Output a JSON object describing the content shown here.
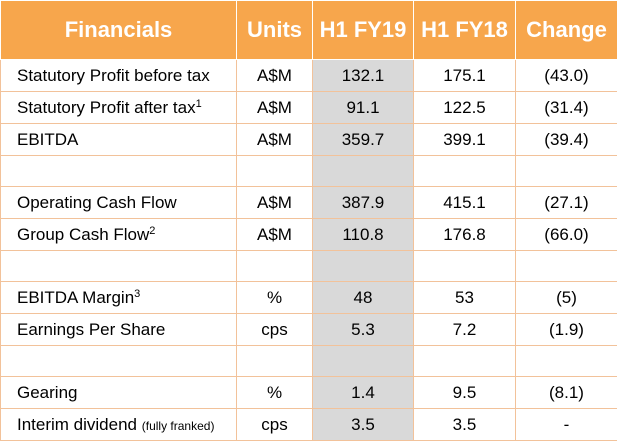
{
  "headers": [
    "Financials",
    "Units",
    "H1 FY19",
    "H1 FY18",
    "Change"
  ],
  "rows": [
    {
      "label": "Statutory Profit before tax",
      "sup": "",
      "note": "",
      "units": "A$M",
      "fy19": "132.1",
      "fy18": "175.1",
      "change": "(43.0)"
    },
    {
      "label": "Statutory Profit after tax",
      "sup": "1",
      "note": "",
      "units": "A$M",
      "fy19": "91.1",
      "fy18": "122.5",
      "change": "(31.4)"
    },
    {
      "label": "EBITDA",
      "sup": "",
      "note": "",
      "units": "A$M",
      "fy19": "359.7",
      "fy18": "399.1",
      "change": "(39.4)"
    },
    {
      "blank": true
    },
    {
      "label": "Operating Cash Flow",
      "sup": "",
      "note": "",
      "units": "A$M",
      "fy19": "387.9",
      "fy18": "415.1",
      "change": "(27.1)"
    },
    {
      "label": "Group Cash Flow",
      "sup": "2",
      "note": "",
      "units": "A$M",
      "fy19": "110.8",
      "fy18": "176.8",
      "change": "(66.0)"
    },
    {
      "blank": true
    },
    {
      "label": "EBITDA Margin",
      "sup": "3",
      "note": "",
      "units": "%",
      "fy19": "48",
      "fy18": "53",
      "change": "(5)"
    },
    {
      "label": "Earnings Per Share",
      "sup": "",
      "note": "",
      "units": "cps",
      "fy19": "5.3",
      "fy18": "7.2",
      "change": "(1.9)"
    },
    {
      "blank": true
    },
    {
      "label": "Gearing",
      "sup": "",
      "note": "",
      "units": "%",
      "fy19": "1.4",
      "fy18": "9.5",
      "change": "(8.1)"
    },
    {
      "label": "Interim dividend",
      "sup": "",
      "note": "(fully franked)",
      "units": "cps",
      "fy19": "3.5",
      "fy18": "3.5",
      "change": "-"
    }
  ],
  "colors": {
    "header_bg": "#f7a64c",
    "highlight_column": "#d9d9d9",
    "grid": "#f2c29a"
  }
}
